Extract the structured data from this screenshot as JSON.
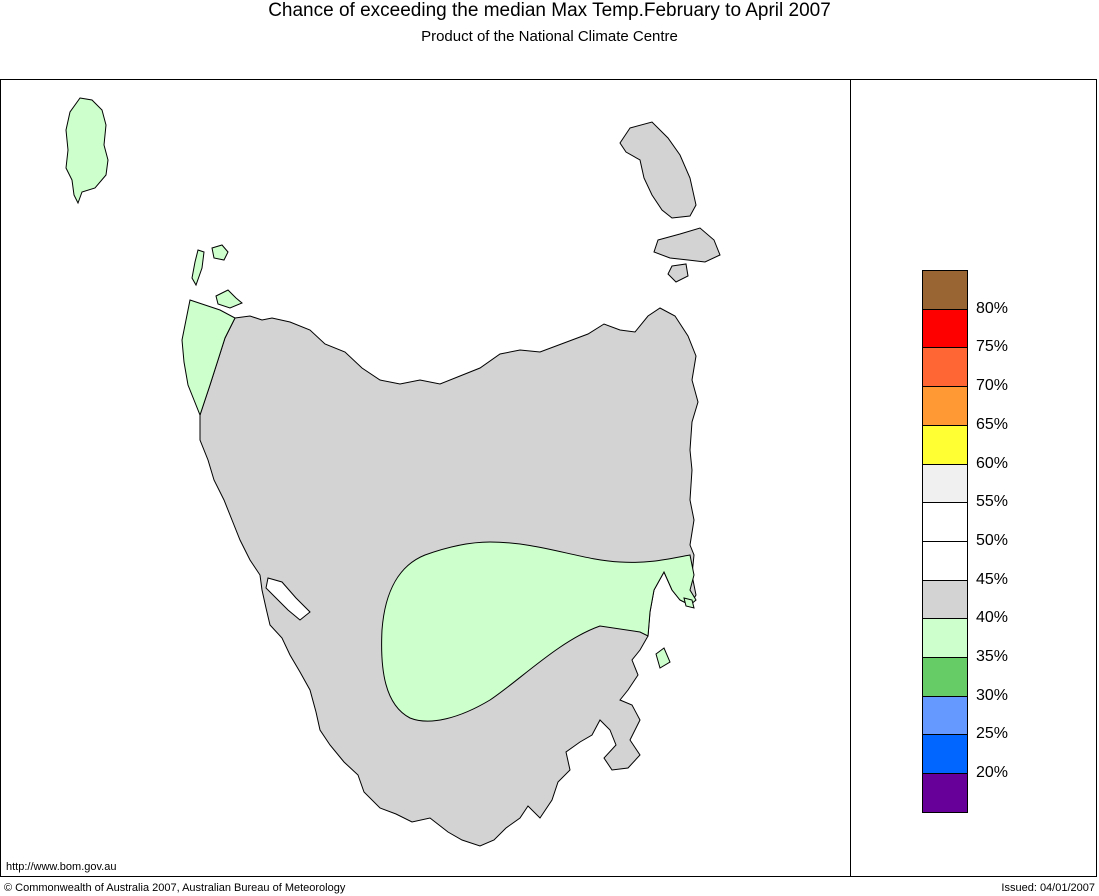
{
  "header": {
    "title": "Chance of exceeding the median Max Temp.February to April 2007",
    "subtitle": "Product of the National Climate Centre"
  },
  "map": {
    "region": "Tasmania",
    "colors": {
      "land": "#d3d3d3",
      "green": "#ccffcc",
      "outline": "#000000"
    }
  },
  "legend": {
    "swatches": [
      {
        "color": "#996633"
      },
      {
        "color": "#ff0000"
      },
      {
        "color": "#ff6633"
      },
      {
        "color": "#ff9933"
      },
      {
        "color": "#ffff33"
      },
      {
        "color": "#f0f0f0"
      },
      {
        "color": "#ffffff"
      },
      {
        "color": "#ffffff"
      },
      {
        "color": "#d3d3d3"
      },
      {
        "color": "#ccffcc"
      },
      {
        "color": "#66cc66"
      },
      {
        "color": "#6699ff"
      },
      {
        "color": "#0066ff"
      },
      {
        "color": "#660099"
      }
    ],
    "labels": [
      "80%",
      "75%",
      "70%",
      "65%",
      "60%",
      "55%",
      "50%",
      "45%",
      "40%",
      "35%",
      "30%",
      "25%",
      "20%"
    ]
  },
  "footer": {
    "url": "http://www.bom.gov.au",
    "copyright": "© Commonwealth of Australia 2007, Australian Bureau of Meteorology",
    "issued": "Issued: 04/01/2007"
  }
}
